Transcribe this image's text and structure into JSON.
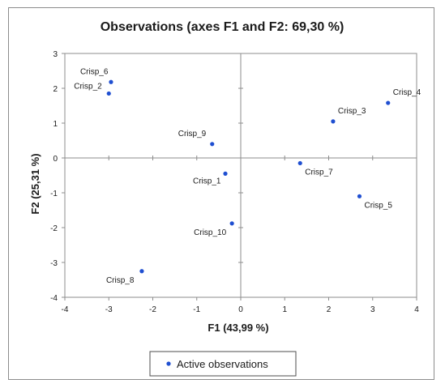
{
  "chart_data": {
    "type": "scatter",
    "title": "Observations (axes F1 and F2: 69,30 %)",
    "xlabel": "F1 (43,99 %)",
    "ylabel": "F2 (25,31 %)",
    "xlim": [
      -4,
      4
    ],
    "ylim": [
      -4,
      3
    ],
    "xticks": [
      -4,
      -3,
      -2,
      -1,
      0,
      1,
      2,
      3,
      4
    ],
    "yticks": [
      -4,
      -3,
      -2,
      -1,
      0,
      1,
      2,
      3
    ],
    "grid": false,
    "legend": {
      "position": "bottom",
      "entries": [
        "Active observations"
      ]
    },
    "color": "#1f4fd1",
    "series": [
      {
        "name": "Active observations",
        "points": [
          {
            "label": "Crisp_6",
            "x": -2.95,
            "y": 2.18
          },
          {
            "label": "Crisp_2",
            "x": -3.0,
            "y": 1.85
          },
          {
            "label": "Crisp_9",
            "x": -0.65,
            "y": 0.4
          },
          {
            "label": "Crisp_1",
            "x": -0.35,
            "y": -0.45
          },
          {
            "label": "Crisp_10",
            "x": -0.2,
            "y": -1.88
          },
          {
            "label": "Crisp_8",
            "x": -2.25,
            "y": -3.25
          },
          {
            "label": "Crisp_7",
            "x": 1.35,
            "y": -0.15
          },
          {
            "label": "Crisp_3",
            "x": 2.1,
            "y": 1.05
          },
          {
            "label": "Crisp_4",
            "x": 3.35,
            "y": 1.58
          },
          {
            "label": "Crisp_5",
            "x": 2.7,
            "y": -1.1
          }
        ]
      }
    ]
  }
}
